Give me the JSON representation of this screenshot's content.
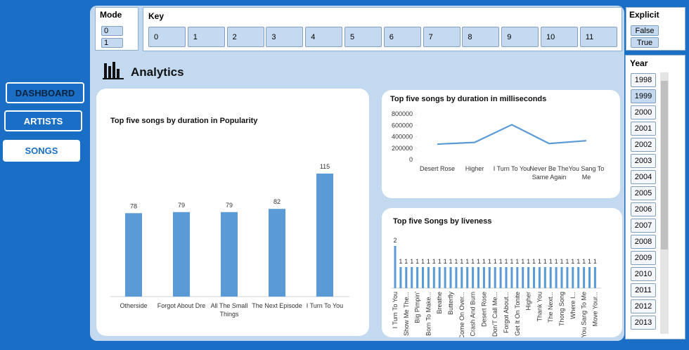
{
  "nav": [
    "DASHBOARD",
    "ARTISTS",
    "SONGS"
  ],
  "slicers": {
    "mode": {
      "title": "Mode",
      "items": [
        "0",
        "1"
      ]
    },
    "key": {
      "title": "Key",
      "items": [
        "0",
        "1",
        "2",
        "3",
        "4",
        "5",
        "6",
        "7",
        "8",
        "9",
        "10",
        "11"
      ]
    },
    "explicit": {
      "title": "Explicit",
      "items": [
        "False",
        "True"
      ]
    },
    "year": {
      "title": "Year",
      "items": [
        "1998",
        "1999",
        "2000",
        "2001",
        "2002",
        "2003",
        "2004",
        "2005",
        "2006",
        "2007",
        "2008",
        "2009",
        "2010",
        "2011",
        "2012",
        "2013"
      ]
    }
  },
  "header": {
    "title": "Analytics"
  },
  "chart_data": [
    {
      "type": "bar",
      "title": "Top five songs by duration in Popularity",
      "color": "#5b9bd5",
      "categories": [
        "Otherside",
        "Forgot About Dre",
        "All The Small Things",
        "The Next Episode",
        "I Turn To You"
      ],
      "values": [
        78,
        79,
        79,
        82,
        115
      ]
    },
    {
      "type": "line",
      "title": "Top five songs by duration in milliseconds",
      "color": "#5b9bd5",
      "categories": [
        "Desert Rose",
        "Higher",
        "I Turn To You",
        "Never Be The Same Again",
        "You Sang To Me"
      ],
      "values": [
        270000,
        300000,
        610000,
        280000,
        330000
      ],
      "ylim": [
        0,
        800000
      ],
      "yticks": [
        0,
        200000,
        400000,
        600000,
        800000
      ]
    },
    {
      "type": "bar",
      "title": "Top five Songs by liveness",
      "color": "#5b9bd5",
      "categories": [
        "I Turn To You",
        null,
        "Show Me The...",
        null,
        "Big Pimpin'",
        null,
        "Born To Make...",
        null,
        "Breathe",
        null,
        "Butterfly",
        null,
        "Come On Over...",
        null,
        "Crash And Burn",
        null,
        "Desert Rose",
        null,
        "Don'T Call Me...",
        null,
        "Forgot About...",
        null,
        "Get It On Tonite",
        null,
        "Higher",
        null,
        "Thank You",
        null,
        "The Next...",
        null,
        "Thong Song",
        null,
        "Where I...",
        null,
        "You Sang To Me",
        null,
        "Move Your..."
      ],
      "values": [
        2,
        1,
        1,
        1,
        1,
        1,
        1,
        1,
        1,
        1,
        1,
        1,
        1,
        1,
        1,
        1,
        1,
        1,
        1,
        1,
        1,
        1,
        1,
        1,
        1,
        1,
        1,
        1,
        1,
        1,
        1,
        1,
        1,
        1,
        1,
        1,
        1
      ]
    }
  ]
}
